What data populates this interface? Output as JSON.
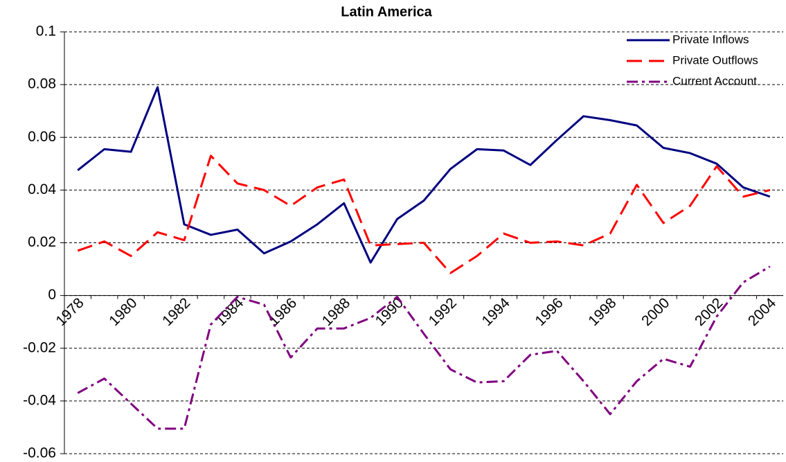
{
  "chart_data": {
    "type": "line",
    "title": "Latin America",
    "categories": [
      "1978",
      null,
      "1980",
      null,
      "1982",
      null,
      "1984",
      null,
      "1986",
      null,
      "1988",
      null,
      "1990",
      null,
      "1992",
      null,
      "1994",
      null,
      "1996",
      null,
      "1998",
      null,
      "2000",
      null,
      "2002",
      null,
      "2004"
    ],
    "series": [
      {
        "name": "Private Inflows",
        "color": "#000080",
        "dash": "solid",
        "values": [
          0.0475,
          0.0555,
          0.0545,
          0.079,
          0.027,
          0.023,
          0.025,
          0.016,
          0.0205,
          0.027,
          0.035,
          0.0125,
          0.029,
          0.036,
          0.048,
          0.0555,
          0.055,
          0.0495,
          0.059,
          0.068,
          0.0665,
          0.0645,
          0.056,
          0.054,
          0.05,
          0.041,
          0.0375
        ]
      },
      {
        "name": "Private Outflows",
        "color": "#ff0000",
        "dash": "dashed",
        "values": [
          0.017,
          0.0205,
          0.015,
          0.024,
          0.021,
          0.053,
          0.0425,
          0.04,
          0.034,
          0.041,
          0.044,
          0.019,
          0.0195,
          0.02,
          0.0085,
          0.015,
          0.0235,
          0.02,
          0.0205,
          0.019,
          0.0235,
          0.042,
          0.0275,
          0.034,
          0.049,
          0.0375,
          0.04
        ]
      },
      {
        "name": "Current Account",
        "color": "#800080",
        "dash": "dashdot",
        "values": [
          -0.037,
          -0.0315,
          -0.041,
          -0.0505,
          -0.0505,
          -0.011,
          -0.0005,
          -0.0035,
          -0.0235,
          -0.0125,
          -0.0125,
          -0.0085,
          -0.0005,
          -0.0145,
          -0.028,
          -0.033,
          -0.0325,
          -0.0225,
          -0.021,
          -0.0325,
          -0.045,
          -0.0325,
          -0.024,
          -0.027,
          -0.008,
          0.005,
          0.011
        ]
      }
    ],
    "ylim": [
      -0.06,
      0.1
    ],
    "yticks": [
      -0.06,
      -0.04,
      -0.02,
      0,
      0.02,
      0.04,
      0.06,
      0.08,
      0.1
    ],
    "grid": true,
    "legend": "top-right"
  }
}
